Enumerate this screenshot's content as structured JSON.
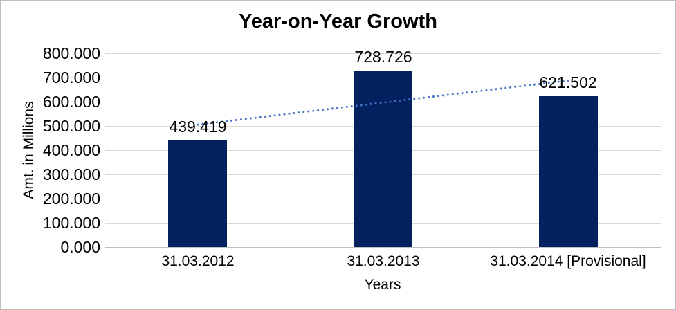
{
  "chart_data": {
    "type": "bar",
    "title": "Year-on-Year Growth",
    "xlabel": "Years",
    "ylabel": "Amt. in Millions",
    "categories": [
      "31.03.2012",
      "31.03.2013",
      "31.03.2014 [Provisional]"
    ],
    "values": [
      439.419,
      728.726,
      621.502
    ],
    "data_labels": [
      "439.419",
      "728.726",
      "621.502"
    ],
    "ylim": [
      0,
      800
    ],
    "ytick_step": 100,
    "ytick_labels": [
      "800.000",
      "700.000",
      "600.000",
      "500.000",
      "400.000",
      "300.000",
      "200.000",
      "100.000",
      "0.000"
    ],
    "grid": true,
    "legend": "none",
    "bar_color": "#02215E",
    "trendline": {
      "type": "linear",
      "style": "dotted",
      "color": "#4472C4",
      "start_value": 505.5,
      "end_value": 687.6
    }
  },
  "colors": {
    "background": "#FFFFFF",
    "border": "#BEBEBE",
    "gridline": "#DADADA",
    "axis_line": "#BFBFBF",
    "text": "#000000"
  }
}
